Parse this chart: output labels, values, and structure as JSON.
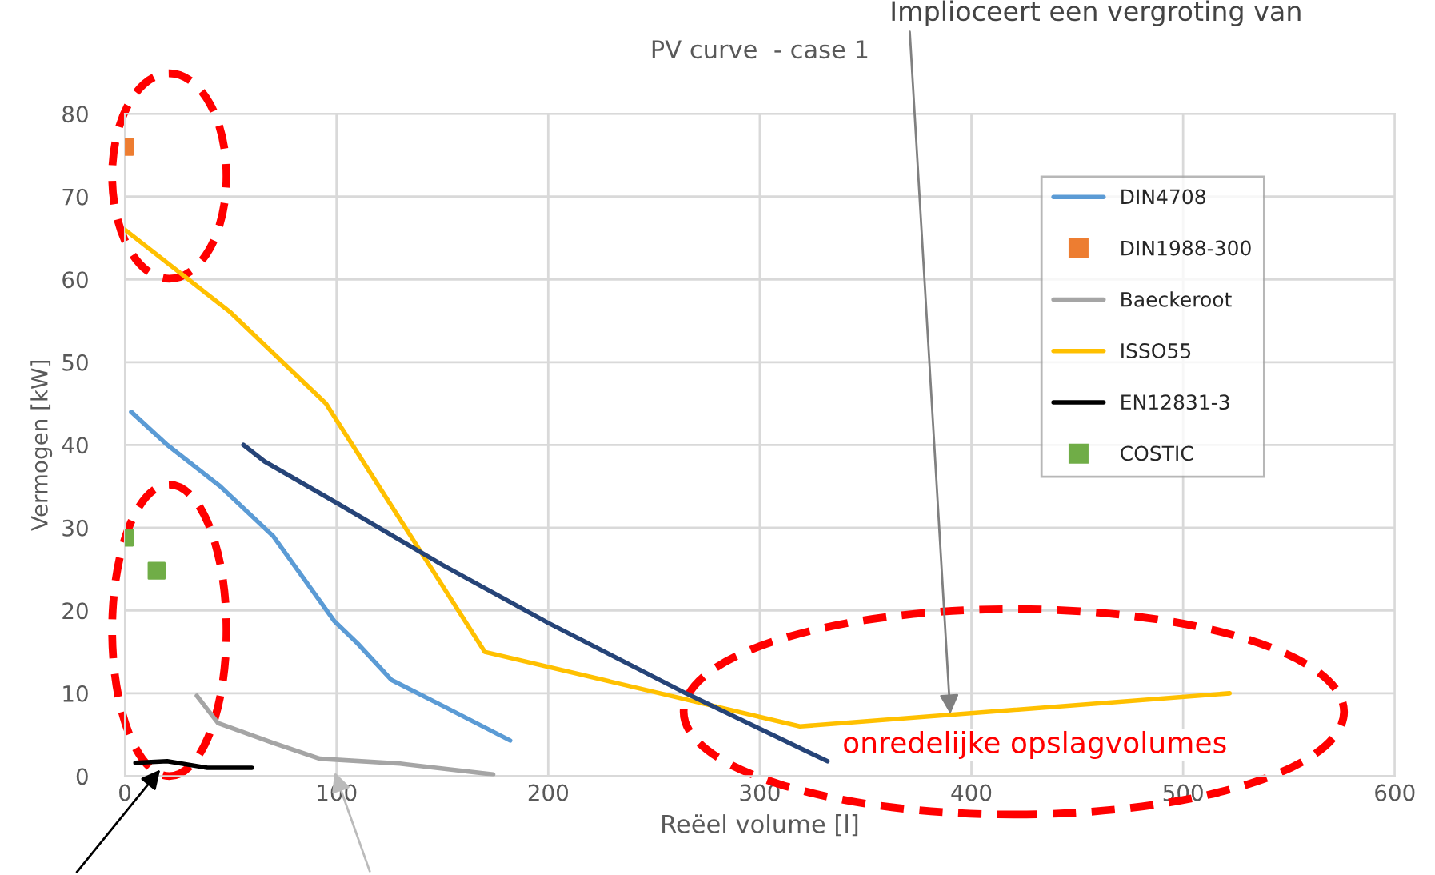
{
  "chart_data": {
    "type": "line",
    "title": "PV curve  - case 1",
    "xlabel": "Reëel volume [l]",
    "ylabel": "Vermogen [kW]",
    "xlim": [
      0,
      600
    ],
    "xticks": [
      0,
      100,
      200,
      300,
      400,
      500,
      600
    ],
    "ylim": [
      0,
      80
    ],
    "yticks": [
      0,
      10,
      20,
      30,
      40,
      50,
      60,
      70,
      80
    ],
    "grid": true,
    "legend": "right",
    "marker": "none",
    "annotations": [
      "onredelijke opslagvolumes",
      {
        "text": "Implioceert een vergroting van",
        "x": 390,
        "y": 7.5
      }
    ],
    "series": [
      {
        "name": "DIN4708",
        "color": "#5b9bd5",
        "x": [
          3,
          20,
          45,
          70,
          99,
          110,
          126,
          150,
          182
        ],
        "values": [
          44,
          40,
          35,
          29,
          18.7,
          16,
          11.6,
          8.5,
          4.3
        ]
      },
      {
        "name": "DIN1988-300",
        "type": "scatter",
        "marker": "square",
        "color": "#ed7d31",
        "x": [
          0
        ],
        "values": [
          76
        ]
      },
      {
        "name": "Baeckeroot",
        "color": "#a5a5a5",
        "x": [
          34,
          44,
          70,
          92,
          130,
          174
        ],
        "values": [
          9.7,
          6.4,
          4,
          2.1,
          1.5,
          0.2
        ]
      },
      {
        "name": "ISSO55",
        "color": "#ffc000",
        "x": [
          0,
          50,
          95,
          170,
          319,
          522
        ],
        "values": [
          66,
          56,
          45,
          15,
          6,
          10
        ]
      },
      {
        "name": "EN12831-3",
        "color": "#000000",
        "x": [
          5,
          20,
          39,
          60
        ],
        "values": [
          1.6,
          1.8,
          1,
          1
        ]
      },
      {
        "name": "COSTIC",
        "type": "scatter",
        "marker": "square",
        "color": "#70ad47",
        "x": [
          0,
          15
        ],
        "values": [
          28.8,
          24.8
        ]
      },
      {
        "color": "#264478",
        "x": [
          56,
          66,
          100,
          150,
          200,
          265,
          332
        ],
        "values": [
          40,
          38,
          33,
          25.5,
          18.5,
          10,
          1.8
        ]
      }
    ]
  }
}
